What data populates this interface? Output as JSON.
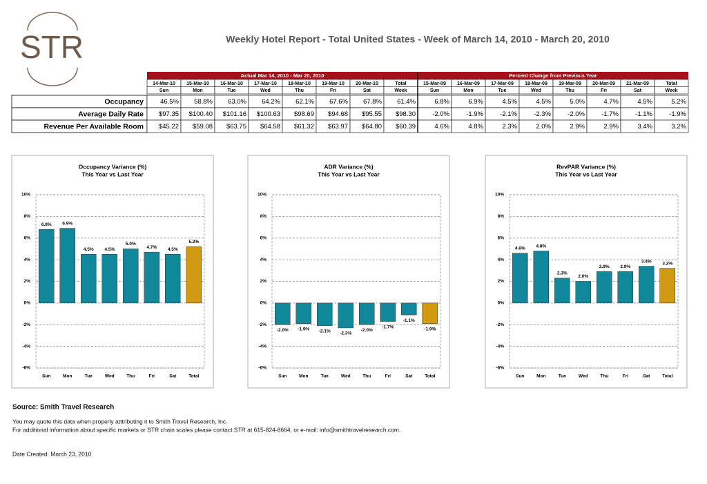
{
  "logo": "STR",
  "title": "Weekly Hotel Report - Total United States - Week of March 14, 2010 - March 20, 2010",
  "table": {
    "groups": [
      {
        "title": "Actual Mar 14, 2010 - Mar 20, 2010",
        "dates": [
          "14-Mar-10",
          "15-Mar-10",
          "16-Mar-10",
          "17-Mar-10",
          "18-Mar-10",
          "19-Mar-10",
          "20-Mar-10",
          "Total"
        ],
        "days": [
          "Sun",
          "Mon",
          "Tue",
          "Wed",
          "Thu",
          "Fri",
          "Sat",
          "Week"
        ]
      },
      {
        "title": "Percent Change from Previous Year",
        "dates": [
          "15-Mar-09",
          "16-Mar-09",
          "17-Mar-09",
          "18-Mar-09",
          "19-Mar-09",
          "20-Mar-09",
          "21-Mar-09",
          "Total"
        ],
        "days": [
          "Sun",
          "Mon",
          "Tue",
          "Wed",
          "Thu",
          "Fri",
          "Sat",
          "Week"
        ]
      }
    ],
    "rows": [
      {
        "label": "Occupancy",
        "cells": [
          "46.5%",
          "58.8%",
          "63.0%",
          "64.2%",
          "62.1%",
          "67.6%",
          "67.8%",
          "61.4%",
          "6.8%",
          "6.9%",
          "4.5%",
          "4.5%",
          "5.0%",
          "4.7%",
          "4.5%",
          "5.2%"
        ]
      },
      {
        "label": "Average Daily Rate",
        "cells": [
          "$97.35",
          "$100.40",
          "$101.16",
          "$100.63",
          "$98.69",
          "$94.68",
          "$95.55",
          "$98.30",
          "-2.0%",
          "-1.9%",
          "-2.1%",
          "-2.3%",
          "-2.0%",
          "-1.7%",
          "-1.1%",
          "-1.9%"
        ]
      },
      {
        "label": "Revenue Per Available Room",
        "cells": [
          "$45.22",
          "$59.08",
          "$63.75",
          "$64.58",
          "$61.32",
          "$63.97",
          "$64.80",
          "$60.39",
          "4.6%",
          "4.8%",
          "2.3%",
          "2.0%",
          "2.9%",
          "2.9%",
          "3.4%",
          "3.2%"
        ]
      }
    ]
  },
  "chart_data": [
    {
      "type": "bar",
      "title": "Occupancy Variance (%)",
      "subtitle": "This Year vs Last Year",
      "categories": [
        "Sun",
        "Mon",
        "Tue",
        "Wed",
        "Thu",
        "Fri",
        "Sat",
        "Total"
      ],
      "values": [
        6.8,
        6.9,
        4.5,
        4.5,
        5.0,
        4.7,
        4.5,
        5.2
      ],
      "value_labels": [
        "6.8%",
        "6.9%",
        "4.5%",
        "4.5%",
        "5.0%",
        "4.7%",
        "4.5%",
        "5.2%"
      ],
      "colors": [
        "#10879a",
        "#10879a",
        "#10879a",
        "#10879a",
        "#10879a",
        "#10879a",
        "#10879a",
        "#d29a12"
      ],
      "ylim": [
        -6,
        10
      ],
      "yticks": [
        {
          "value": -6,
          "label": "-6%"
        },
        {
          "value": -4,
          "label": "-4%"
        },
        {
          "value": -2,
          "label": "-2%"
        },
        {
          "value": 0,
          "label": "0%"
        },
        {
          "value": 2,
          "label": "2%"
        },
        {
          "value": 4,
          "label": "4%"
        },
        {
          "value": 6,
          "label": "6%"
        },
        {
          "value": 8,
          "label": "8%"
        },
        {
          "value": 10,
          "label": "10%"
        }
      ],
      "grid": true
    },
    {
      "type": "bar",
      "title": "ADR Variance (%)",
      "subtitle": "This Year vs Last Year",
      "categories": [
        "Sun",
        "Mon",
        "Tue",
        "Wed",
        "Thu",
        "Fri",
        "Sat",
        "Total"
      ],
      "values": [
        -2.0,
        -1.9,
        -2.1,
        -2.3,
        -2.0,
        -1.7,
        -1.1,
        -1.9
      ],
      "value_labels": [
        "-2.0%",
        "-1.9%",
        "-2.1%",
        "-2.3%",
        "-2.0%",
        "-1.7%",
        "-1.1%",
        "-1.9%"
      ],
      "colors": [
        "#10879a",
        "#10879a",
        "#10879a",
        "#10879a",
        "#10879a",
        "#10879a",
        "#10879a",
        "#d29a12"
      ],
      "ylim": [
        -6,
        10
      ],
      "yticks": [
        {
          "value": -6,
          "label": "-6%"
        },
        {
          "value": -4,
          "label": "-4%"
        },
        {
          "value": -2,
          "label": "-2%"
        },
        {
          "value": 0,
          "label": "0%"
        },
        {
          "value": 2,
          "label": "2%"
        },
        {
          "value": 4,
          "label": "4%"
        },
        {
          "value": 6,
          "label": "6%"
        },
        {
          "value": 8,
          "label": "8%"
        },
        {
          "value": 10,
          "label": "10%"
        }
      ],
      "grid": true
    },
    {
      "type": "bar",
      "title": "RevPAR Variance (%)",
      "subtitle": "This Year vs Last Year",
      "categories": [
        "Sun",
        "Mon",
        "Tue",
        "Wed",
        "Thu",
        "Fri",
        "Sat",
        "Total"
      ],
      "values": [
        4.6,
        4.8,
        2.3,
        2.0,
        2.9,
        2.9,
        3.4,
        3.2
      ],
      "value_labels": [
        "4.6%",
        "4.8%",
        "2.3%",
        "2.0%",
        "2.9%",
        "2.9%",
        "3.4%",
        "3.2%"
      ],
      "colors": [
        "#10879a",
        "#10879a",
        "#10879a",
        "#10879a",
        "#10879a",
        "#10879a",
        "#10879a",
        "#d29a12"
      ],
      "ylim": [
        -6,
        10
      ],
      "yticks": [
        {
          "value": -6,
          "label": "-6%"
        },
        {
          "value": -4,
          "label": "-4%"
        },
        {
          "value": -2,
          "label": "-2%"
        },
        {
          "value": 0,
          "label": "0%"
        },
        {
          "value": 2,
          "label": "2%"
        },
        {
          "value": 4,
          "label": "4%"
        },
        {
          "value": 6,
          "label": "6%"
        },
        {
          "value": 8,
          "label": "8%"
        },
        {
          "value": 10,
          "label": "10%"
        }
      ],
      "grid": true
    }
  ],
  "footer": {
    "source": "Source: Smith Travel Research",
    "notes": [
      "You may quote this data when properly atttributing it to Smith Travel Research, Inc.",
      "For additional information about specific markets or STR chain scales please contact STR at 615-824-8664, or e-mail: info@smithtravelresearch.com."
    ],
    "date_created": "Date Created: March 23, 2010"
  }
}
